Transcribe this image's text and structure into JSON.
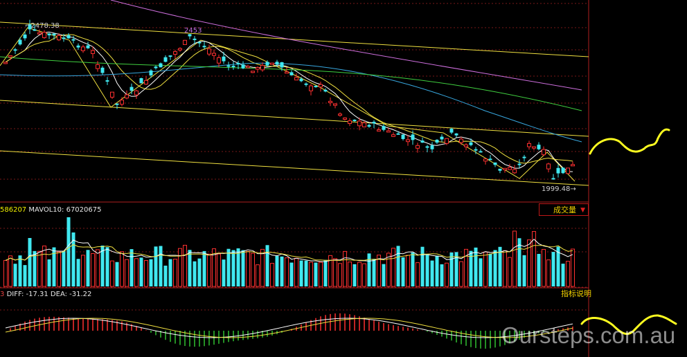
{
  "price_labels": {
    "peak_left": "2478.38",
    "peak_mid": "2453",
    "low": "1999.48"
  },
  "volume_label": {
    "ma5_text": "586207",
    "ma10_text": "MAVOL10: 67020675"
  },
  "macd_label": {
    "prefix": "3",
    "diff_text": "DIFF: -17.31",
    "dea_text": "DEA: -31.22"
  },
  "buttons": {
    "volume_select": "成交量",
    "volume_select_arrow": "▼",
    "indicator_help": "指标说明"
  },
  "watermark": "Oursteps.com.au",
  "colors": {
    "up": "#ff3030",
    "down": "#40e8f0",
    "ma5": "#ffffff",
    "ma10": "#f0e040",
    "ma_green": "#40d040",
    "ma_blue": "#38a8e0",
    "ma_purple": "#d070e0",
    "trend": "#f0e040",
    "annotation": "#ffff20"
  },
  "chart_data": {
    "type": "candlestick",
    "note_panels": [
      "price",
      "volume",
      "macd"
    ],
    "price_high": 2478.38,
    "price_low": 1999.48,
    "local_peak": 2453,
    "volume_ma10": 67020675,
    "macd_diff": -17.31,
    "macd_dea": -31.22
  }
}
